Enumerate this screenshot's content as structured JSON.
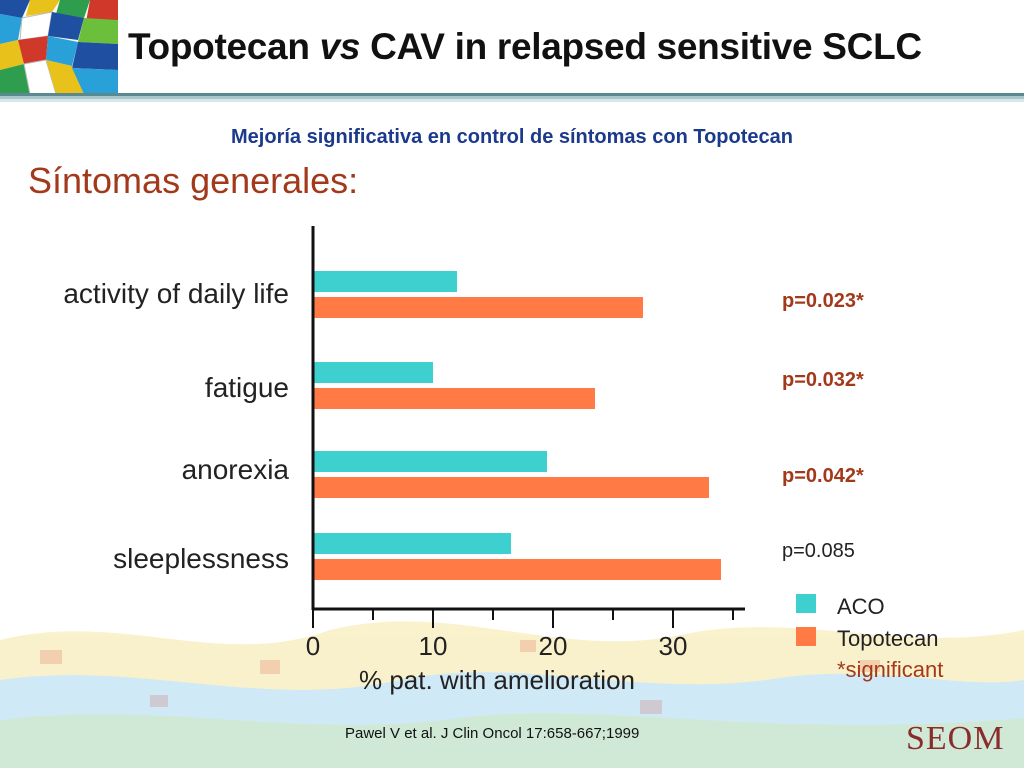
{
  "header": {
    "title_pre": "Topotecan ",
    "title_vs": "vs",
    "title_post": " CAV in relapsed sensitive SCLC"
  },
  "subtitle": "Mejoría significativa en control de síntomas con Topotecan",
  "section_heading": "Síntomas generales:",
  "citation": "Pawel V et al. J Clin Oncol 17:658-667;1999",
  "logo_text": "SEOM",
  "colors": {
    "aco": "#3ecfcf",
    "topotecan": "#ff7a45",
    "significant": "#a3391b"
  },
  "chart_data": {
    "type": "bar",
    "orientation": "horizontal",
    "categories": [
      "activity of daily life",
      "fatigue",
      "anorexia",
      "sleeplessness"
    ],
    "series": [
      {
        "name": "ACO",
        "values": [
          12,
          10,
          19.5,
          16.5
        ]
      },
      {
        "name": "Topotecan",
        "values": [
          27.5,
          23.5,
          33,
          34
        ]
      }
    ],
    "p_values": [
      {
        "text": "p=0.023*",
        "significant": true
      },
      {
        "text": "p=0.032*",
        "significant": true
      },
      {
        "text": "p=0.042*",
        "significant": true
      },
      {
        "text": "p=0.085",
        "significant": false
      }
    ],
    "xlabel": "% pat. with amelioration",
    "xticks": [
      0,
      10,
      20,
      30
    ],
    "xlim": [
      0,
      36
    ],
    "legend_note": "*significant",
    "legend_position": "right"
  }
}
